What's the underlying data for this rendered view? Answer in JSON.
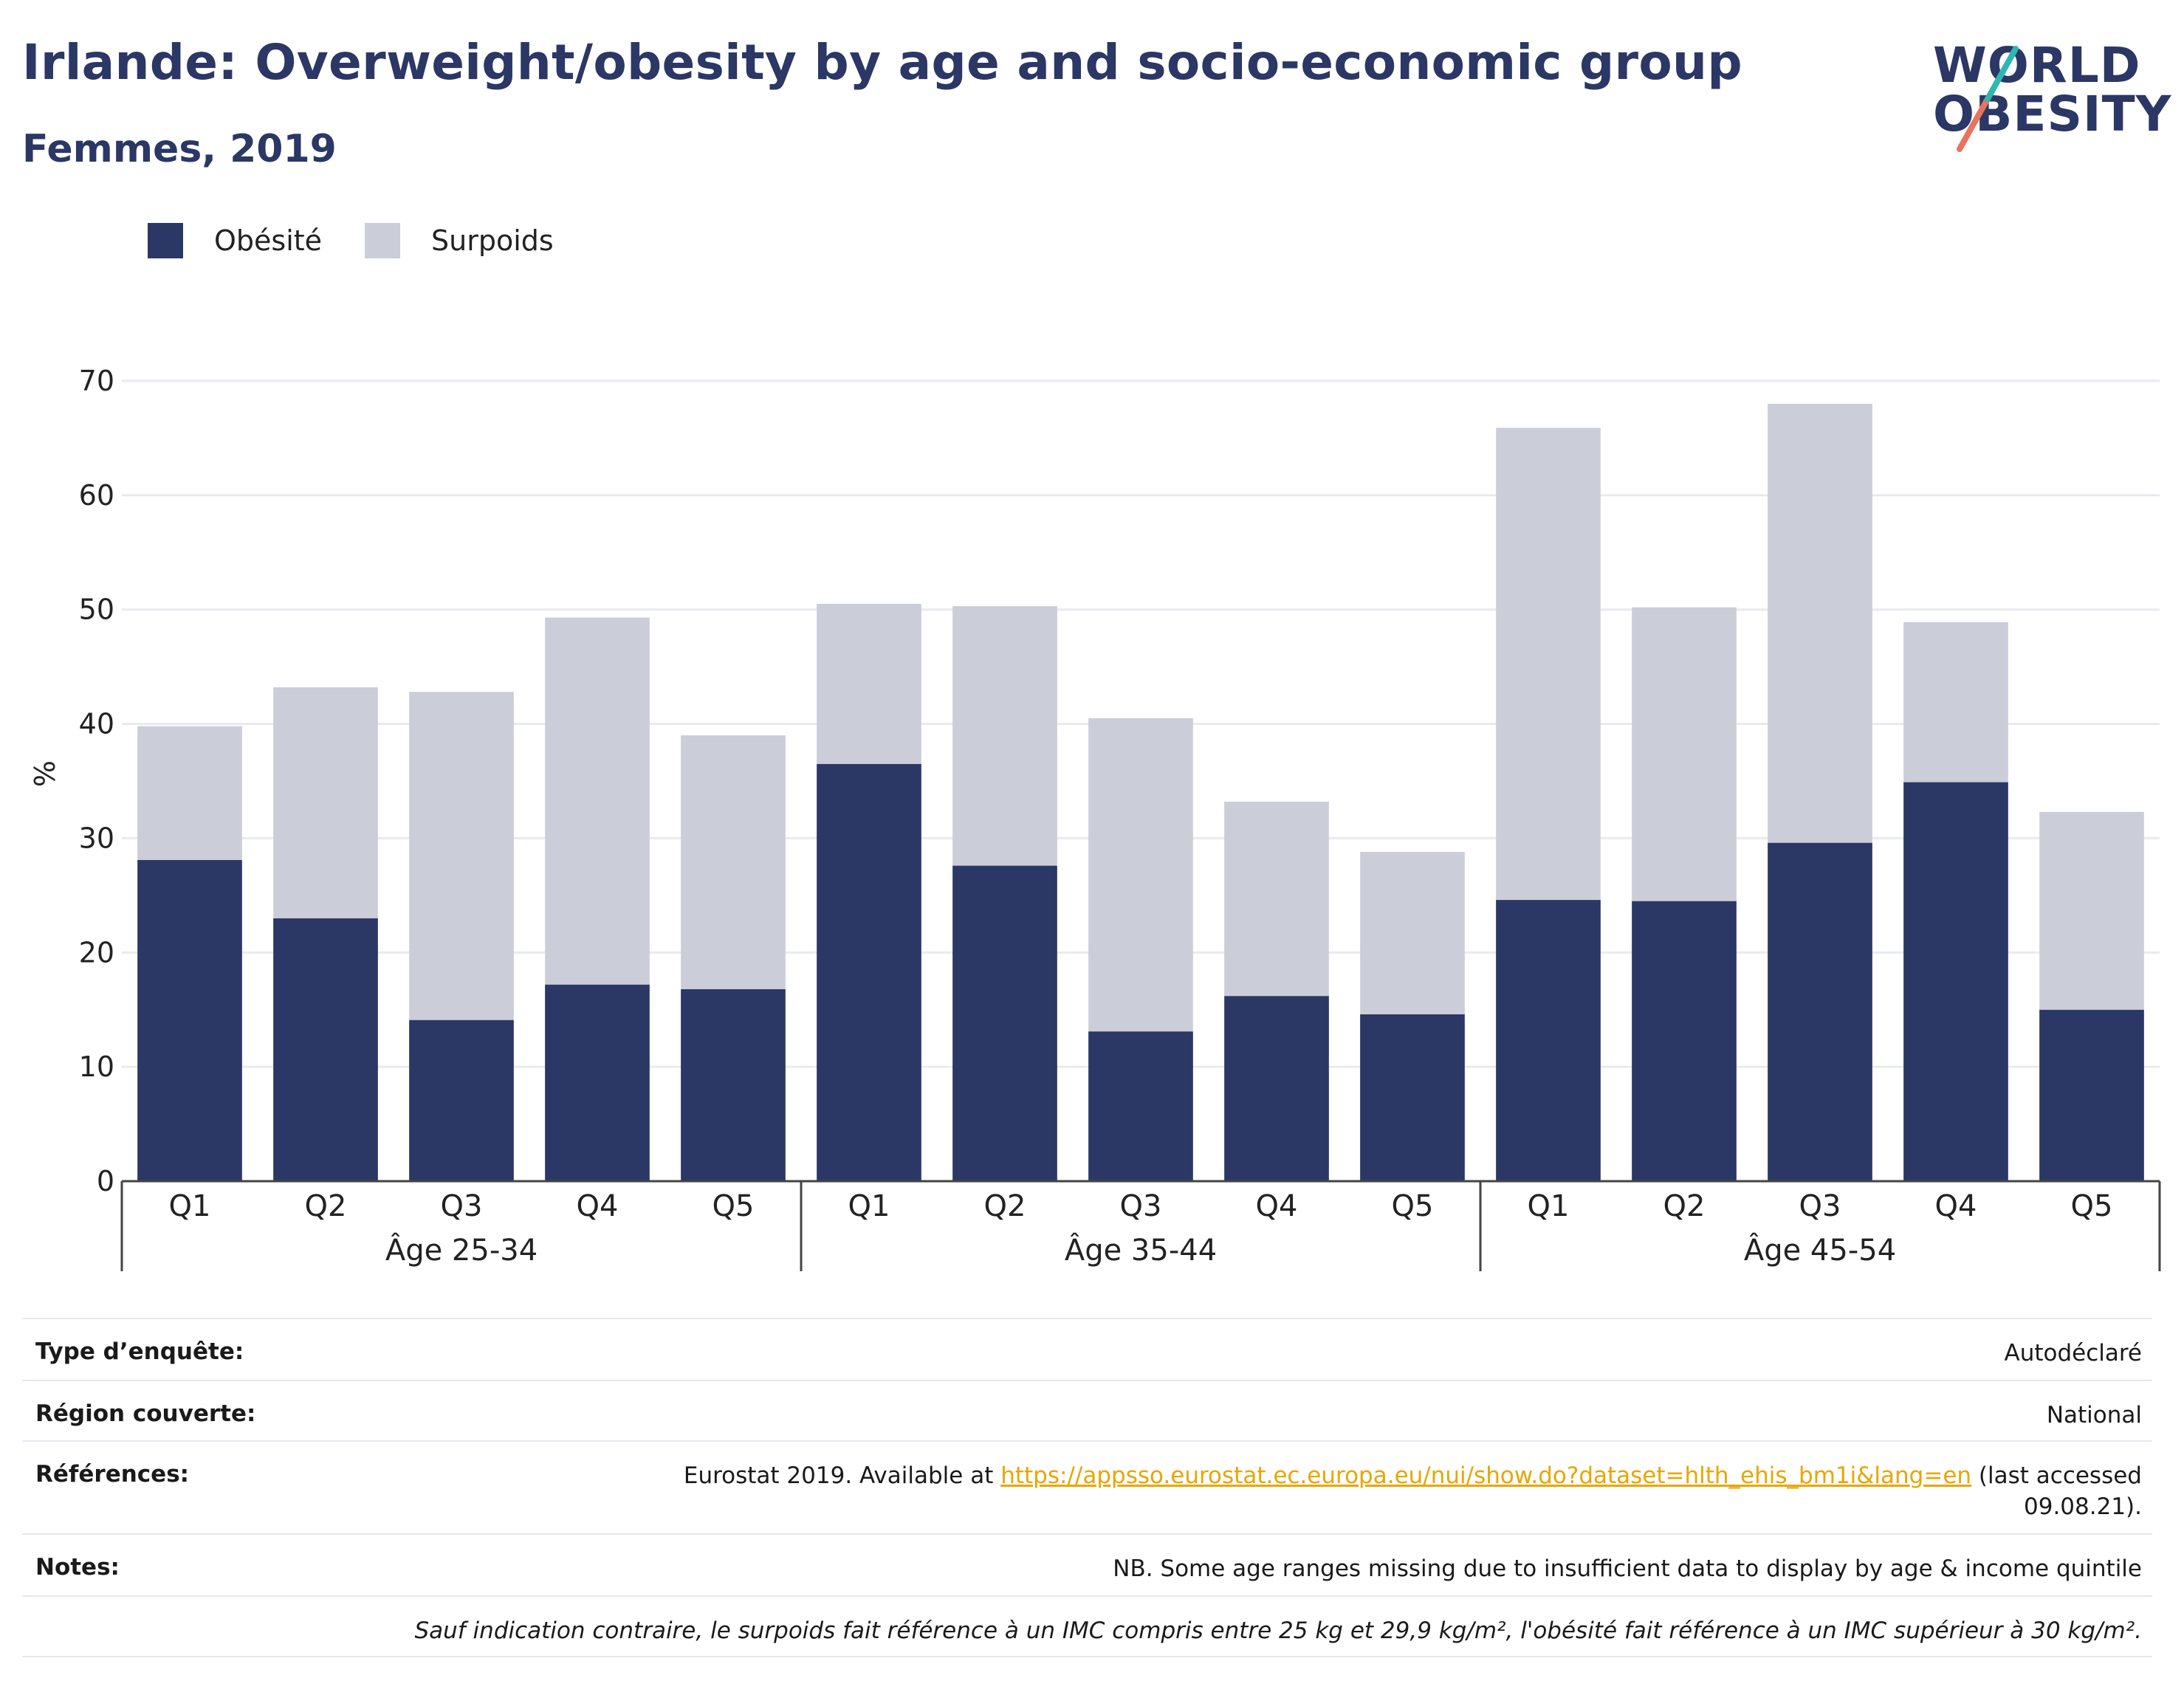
{
  "title": "Irlande: Overweight/obesity by age and socio-economic group",
  "subtitle": "Femmes, 2019",
  "logo": {
    "line1": "WORLD",
    "line2": "OBESITY"
  },
  "colors": {
    "obesity": "#2b3765",
    "overweight": "#cbcdd9",
    "title": "#2b3765",
    "link": "#e8a600",
    "grid": "#e9eaef"
  },
  "chart_data": {
    "type": "bar",
    "stacked": true,
    "ylabel": "%",
    "xlabel": "",
    "ylim": [
      0,
      70
    ],
    "yticks": [
      0,
      10,
      20,
      30,
      40,
      50,
      60,
      70
    ],
    "grid": true,
    "legend_position": "top-left",
    "groups": [
      {
        "label": "Âge 25-34",
        "categories": [
          "Q1",
          "Q2",
          "Q3",
          "Q4",
          "Q5"
        ]
      },
      {
        "label": "Âge 35-44",
        "categories": [
          "Q1",
          "Q2",
          "Q3",
          "Q4",
          "Q5"
        ]
      },
      {
        "label": "Âge 45-54",
        "categories": [
          "Q1",
          "Q2",
          "Q3",
          "Q4",
          "Q5"
        ]
      }
    ],
    "series": [
      {
        "name": "Obésité",
        "color": "#2b3765",
        "values": [
          28.1,
          23.0,
          14.1,
          17.2,
          16.8,
          36.5,
          27.6,
          13.1,
          16.2,
          14.6,
          24.6,
          24.5,
          29.6,
          34.9,
          15.0
        ]
      },
      {
        "name": "Surpoids",
        "color": "#cbcdd9",
        "values": [
          11.7,
          20.2,
          28.7,
          32.1,
          22.2,
          14.0,
          22.7,
          27.4,
          17.0,
          14.2,
          41.3,
          25.7,
          38.4,
          14.0,
          17.3
        ]
      }
    ]
  },
  "info": {
    "survey_type_label": "Type d’enquête:",
    "survey_type_value": "Autodéclaré",
    "region_label": "Région couverte:",
    "region_value": "National",
    "references_label": "Références:",
    "references_prefix": "Eurostat 2019. Available at ",
    "references_link": "https://appsso.eurostat.ec.europa.eu/nui/show.do?dataset=hlth_ehis_bm1i&lang=en",
    "references_suffix": " (last accessed",
    "references_date": "09.08.21).",
    "notes_label": "Notes:",
    "notes_value": "NB. Some age ranges missing due to insufficient data to display by age & income quintile",
    "footnote": "Sauf indication contraire, le surpoids fait référence à un IMC compris entre 25 kg et 29,9 kg/m², l'obésité fait référence à un IMC supérieur à 30 kg/m²."
  }
}
